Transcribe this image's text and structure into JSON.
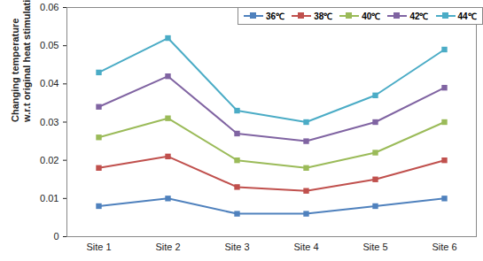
{
  "chart_data": {
    "type": "line",
    "ylabel": [
      "Changing temperature",
      "w.r.t original heat stimulation (℃)"
    ],
    "categories": [
      "Site 1",
      "Site 2",
      "Site 3",
      "Site 4",
      "Site 5",
      "Site 6"
    ],
    "series": [
      {
        "name": "36℃",
        "color": "#4f81bd",
        "values": [
          0.008,
          0.01,
          0.006,
          0.006,
          0.008,
          0.01
        ]
      },
      {
        "name": "38℃",
        "color": "#c0504d",
        "values": [
          0.018,
          0.021,
          0.013,
          0.012,
          0.015,
          0.02
        ]
      },
      {
        "name": "40℃",
        "color": "#9bbb59",
        "values": [
          0.026,
          0.031,
          0.02,
          0.018,
          0.022,
          0.03
        ]
      },
      {
        "name": "42℃",
        "color": "#8064a2",
        "values": [
          0.034,
          0.042,
          0.027,
          0.025,
          0.03,
          0.039
        ]
      },
      {
        "name": "44℃",
        "color": "#4bacc6",
        "values": [
          0.043,
          0.052,
          0.033,
          0.03,
          0.037,
          0.049
        ]
      }
    ],
    "ylim": [
      0,
      0.06
    ],
    "yticks": [
      0,
      0.01,
      0.02,
      0.03,
      0.04,
      0.05,
      0.06
    ],
    "grid": false,
    "legend": "top-right",
    "marker": "square"
  }
}
